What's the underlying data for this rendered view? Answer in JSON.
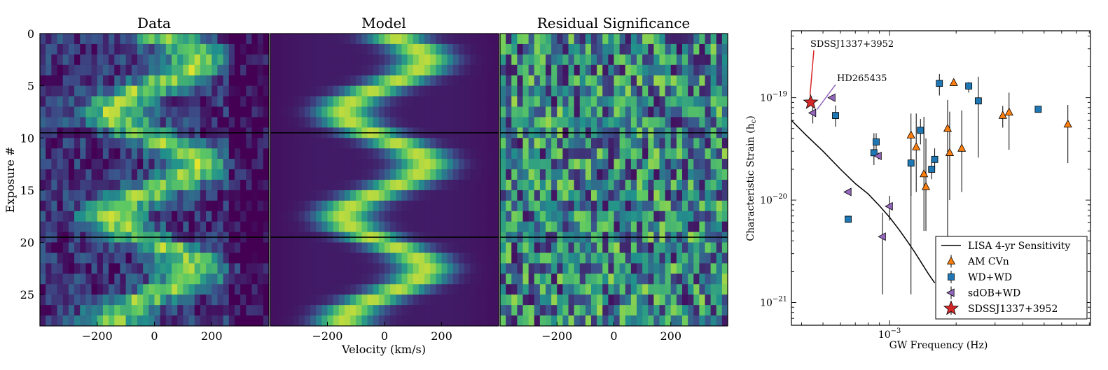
{
  "chart_data": [
    {
      "type": "heatmap",
      "title": "Data",
      "xlabel": "",
      "ylabel": "Exposure #",
      "xlim": [
        -400,
        400
      ],
      "ylim": [
        28,
        0
      ],
      "xticks": [
        -200,
        0,
        200
      ],
      "xtick_labels": [
        "−200",
        "0",
        "200"
      ],
      "yticks": [
        0,
        5,
        10,
        15,
        20,
        25
      ],
      "ytick_labels": [
        "0",
        "5",
        "10",
        "15",
        "20",
        "25"
      ],
      "hlines": [
        9.5,
        19.5
      ],
      "colormap": "viridis"
    },
    {
      "type": "heatmap",
      "title": "Model",
      "xlabel": "Velocity (km/s)",
      "ylabel": "",
      "xlim": [
        -400,
        400
      ],
      "ylim": [
        28,
        0
      ],
      "xticks": [
        -200,
        0,
        200
      ],
      "xtick_labels": [
        "−200",
        "0",
        "200"
      ],
      "hlines": [
        9.5,
        19.5
      ],
      "colormap": "viridis"
    },
    {
      "type": "heatmap",
      "title": "Residual Significance",
      "xlabel": "",
      "ylabel": "",
      "xlim": [
        -400,
        400
      ],
      "ylim": [
        28,
        0
      ],
      "xticks": [
        -200,
        0,
        200
      ],
      "xtick_labels": [
        "−200",
        "0",
        "200"
      ],
      "hlines": [
        9.5,
        19.5
      ],
      "colormap": "viridis"
    },
    {
      "type": "scatter",
      "title": "",
      "xlabel": "GW Frequency (Hz)",
      "ylabel": "Characteristic Strain (h_c)",
      "ylabel_main": "Characteristic Strain (h",
      "ylabel_sub": "c",
      "ylabel_end": ")",
      "xscale": "log",
      "yscale": "log",
      "xlim": [
        0.00036,
        0.0081
      ],
      "ylim": [
        6e-22,
        4.5e-19
      ],
      "xtick_major_base": "10",
      "xtick_major_exp": "−3",
      "ytick_labels": [
        {
          "base": "10",
          "exp": "−19",
          "value": 1e-19
        },
        {
          "base": "10",
          "exp": "−20",
          "value": 1e-20
        },
        {
          "base": "10",
          "exp": "−21",
          "value": 1e-21
        }
      ],
      "legend_position": "lower-right",
      "legend": [
        {
          "label": "LISA 4-yr Sensitivity",
          "marker": "line"
        },
        {
          "label": "AM CVn",
          "marker": "triangle-up"
        },
        {
          "label": "WD+WD",
          "marker": "square"
        },
        {
          "label": "sdOB+WD",
          "marker": "triangle-left"
        },
        {
          "label": "SDSSJ1337+3952",
          "marker": "star"
        }
      ],
      "annotations": [
        {
          "text": "SDSSJ1337+3952",
          "color": "#d62728"
        },
        {
          "text": "HD265435",
          "color": "#9467bd"
        }
      ],
      "colors": {
        "am_cvn": "#ff7f0e",
        "wd_wd": "#1f77b4",
        "sdob_wd": "#9467bd",
        "star": "#d62728",
        "lisa": "#000000"
      },
      "lisa_curve": {
        "x": [
          0.00036,
          0.00042,
          0.0005,
          0.0006,
          0.0007,
          0.0008,
          0.0009,
          0.001,
          0.0011,
          0.0012,
          0.0013,
          0.0014,
          0.0015,
          0.0016
        ],
        "y": [
          6e-20,
          4.3e-20,
          3e-20,
          2e-20,
          1.45e-20,
          1.15e-20,
          8.8e-21,
          6.8e-21,
          5.2e-21,
          4e-21,
          3.1e-21,
          2.4e-21,
          1.9e-21,
          1.55e-21
        ]
      },
      "series": [
        {
          "name": "AM CVn",
          "marker": "triangle-up",
          "x": [
            0.00125,
            0.00132,
            0.00143,
            0.00146,
            0.00183,
            0.00187,
            0.00195,
            0.00212,
            0.00325,
            0.00347,
            0.0064
          ],
          "y": [
            4.3e-20,
            3.3e-20,
            1.8e-20,
            1.35e-20,
            5e-20,
            2.9e-20,
            1.4e-19,
            3.2e-20,
            6.7e-20,
            7.2e-20,
            5.5e-20
          ],
          "y_err_low": [
            1.1e-20,
            1.2e-20,
            5e-21,
            5e-21,
            3.3e-21,
            1e-20,
            1.3e-19,
            1.2e-20,
            5.1e-20,
            3.1e-20,
            2.3e-20
          ],
          "y_err_high": [
            7e-20,
            7e-20,
            6.5e-20,
            4e-20,
            9.5e-20,
            7.3e-20,
            1.5e-19,
            7.5e-20,
            8.3e-20,
            1.12e-19,
            8.5e-20
          ]
        },
        {
          "name": "WD+WD",
          "marker": "square",
          "x": [
            0.00057,
            0.00065,
            0.00085,
            0.00087,
            0.00125,
            0.00138,
            0.00155,
            0.0016,
            0.00168,
            0.00228,
            0.00252,
            0.0047
          ],
          "y": [
            6.7e-20,
            6.5e-21,
            2.9e-20,
            3.7e-20,
            2.3e-20,
            4.8e-20,
            2e-20,
            2.5e-20,
            1.38e-19,
            1.3e-19,
            9.3e-20,
            7.7e-20
          ],
          "y_err_low": [
            5.2e-20,
            6e-21,
            2.2e-20,
            3e-20,
            1.2e-21,
            3.5e-20,
            1.6e-20,
            2e-20,
            1.05e-19,
            1.12e-19,
            2.6e-20,
            7.3e-20
          ],
          "y_err_high": [
            8.4e-20,
            7e-21,
            4.5e-20,
            4.5e-20,
            4e-20,
            6.2e-20,
            2.5e-20,
            3.2e-20,
            1.7e-19,
            1.42e-19,
            1.6e-19,
            8.2e-20
          ]
        },
        {
          "name": "sdOB+WD",
          "marker": "triangle-left",
          "x": [
            0.00055,
            0.00065,
            0.00089,
            0.00093,
            0.001
          ],
          "y": [
            1e-19,
            1.2e-20,
            2.7e-20,
            4.4e-21,
            8.7e-21
          ],
          "y_err_low": [
            1e-19,
            1.15e-20,
            2.5e-20,
            1.2e-21,
            6.3e-21
          ],
          "y_err_high": [
            1e-19,
            1.25e-20,
            2.9e-20,
            7.5e-21,
            1.1e-20
          ]
        },
        {
          "name": "HD265435",
          "marker": "triangle-left",
          "x": [
            0.00045
          ],
          "y": [
            7.1e-20
          ],
          "y_err_low": [
            5.6e-20
          ],
          "y_err_high": [
            8.6e-20
          ]
        },
        {
          "name": "SDSSJ1337+3952",
          "marker": "star",
          "x": [
            0.00044
          ],
          "y": [
            9e-20
          ]
        }
      ]
    }
  ]
}
